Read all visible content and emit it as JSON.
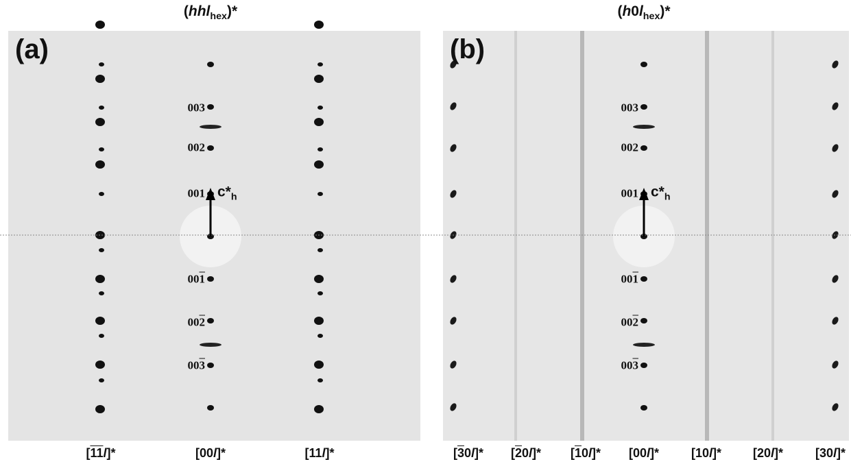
{
  "panels": [
    {
      "letter": "(a)",
      "title": [
        {
          "t": "("
        },
        {
          "t": "hhl",
          "i": true
        },
        {
          "t": "hex",
          "sub": true
        },
        {
          "t": ")*"
        }
      ],
      "reflections": [
        [
          {
            "t": "003"
          }
        ],
        [
          {
            "t": "002"
          }
        ],
        [
          {
            "t": "001"
          }
        ],
        [
          {
            "t": "00"
          },
          {
            "t": "1",
            "bar": true
          }
        ],
        [
          {
            "t": "00"
          },
          {
            "t": "2",
            "bar": true
          }
        ],
        [
          {
            "t": "00"
          },
          {
            "t": "3",
            "bar": true
          }
        ]
      ],
      "axis_label": [
        {
          "t": "c*"
        },
        {
          "t": "h",
          "sub": true
        }
      ],
      "rows": [
        [
          {
            "t": "["
          },
          {
            "t": "1",
            "bar": true
          },
          {
            "t": "1",
            "bar": true
          },
          {
            "t": "l",
            "i": true
          },
          {
            "t": "]*"
          }
        ],
        [
          {
            "t": "[00"
          },
          {
            "t": "l",
            "i": true
          },
          {
            "t": "]*"
          }
        ],
        [
          {
            "t": "[11"
          },
          {
            "t": "l",
            "i": true
          },
          {
            "t": "]*"
          }
        ]
      ]
    },
    {
      "letter": "(b)",
      "title": [
        {
          "t": "("
        },
        {
          "t": "h",
          "i": true
        },
        {
          "t": "0"
        },
        {
          "t": "l",
          "i": true
        },
        {
          "t": "hex",
          "sub": true
        },
        {
          "t": ")*"
        }
      ],
      "reflections": [
        [
          {
            "t": "003"
          }
        ],
        [
          {
            "t": "002"
          }
        ],
        [
          {
            "t": "001"
          }
        ],
        [
          {
            "t": "00"
          },
          {
            "t": "1",
            "bar": true
          }
        ],
        [
          {
            "t": "00"
          },
          {
            "t": "2",
            "bar": true
          }
        ],
        [
          {
            "t": "00"
          },
          {
            "t": "3",
            "bar": true
          }
        ]
      ],
      "axis_label": [
        {
          "t": "c*"
        },
        {
          "t": "h",
          "sub": true
        }
      ],
      "rows": [
        [
          {
            "t": "["
          },
          {
            "t": "3",
            "bar": true
          },
          {
            "t": "0"
          },
          {
            "t": "l",
            "i": true
          },
          {
            "t": "]*"
          }
        ],
        [
          {
            "t": "["
          },
          {
            "t": "2",
            "bar": true
          },
          {
            "t": "0"
          },
          {
            "t": "l",
            "i": true
          },
          {
            "t": "]*"
          }
        ],
        [
          {
            "t": "["
          },
          {
            "t": "1",
            "bar": true
          },
          {
            "t": "0"
          },
          {
            "t": "l",
            "i": true
          },
          {
            "t": "]*"
          }
        ],
        [
          {
            "t": "[00"
          },
          {
            "t": "l",
            "i": true
          },
          {
            "t": "]*"
          }
        ],
        [
          {
            "t": "[10"
          },
          {
            "t": "l",
            "i": true
          },
          {
            "t": "]*"
          }
        ],
        [
          {
            "t": "[20"
          },
          {
            "t": "l",
            "i": true
          },
          {
            "t": "]*"
          }
        ],
        [
          {
            "t": "[30"
          },
          {
            "t": "l",
            "i": true
          },
          {
            "t": "]*"
          }
        ]
      ]
    }
  ]
}
